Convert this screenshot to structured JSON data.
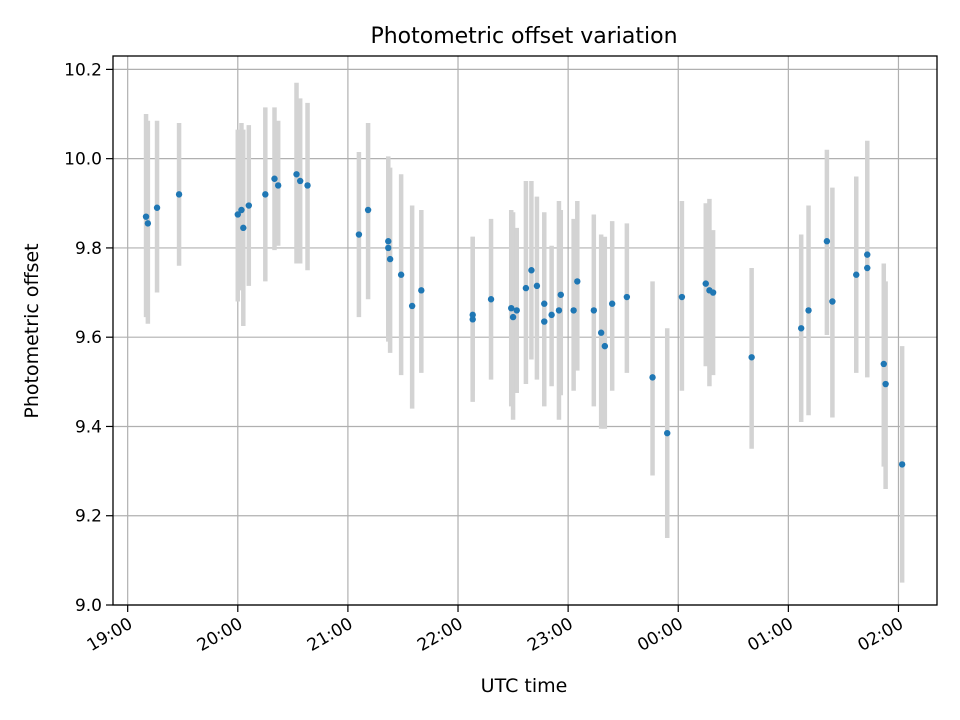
{
  "chart_data": {
    "type": "scatter",
    "title": "Photometric offset variation",
    "xlabel": "UTC time",
    "ylabel": "Photometric offset",
    "xlim": [
      "18:52",
      "02:21"
    ],
    "ylim": [
      9.0,
      10.23
    ],
    "xticks": [
      "19:00",
      "20:00",
      "21:00",
      "22:00",
      "23:00",
      "00:00",
      "01:00",
      "02:00"
    ],
    "yticks": [
      "9.0",
      "9.2",
      "9.4",
      "9.6",
      "9.8",
      "10.0",
      "10.2"
    ],
    "grid": true,
    "colors": {
      "point": "#1f77b4",
      "errorbar": "#d3d3d3",
      "grid": "#b0b0b0"
    },
    "series": [
      {
        "x": [
          "19:10",
          "19:11",
          "19:16",
          "19:28",
          "20:00",
          "20:02",
          "20:03",
          "20:06",
          "20:15",
          "20:20",
          "20:22",
          "20:32",
          "20:34",
          "20:38",
          "21:06",
          "21:11",
          "21:22",
          "21:22",
          "21:23",
          "21:29",
          "21:35",
          "21:40",
          "22:08",
          "22:08",
          "22:18",
          "22:29",
          "22:30",
          "22:32",
          "22:37",
          "22:40",
          "22:43",
          "22:47",
          "22:47",
          "22:51",
          "22:55",
          "22:56",
          "23:03",
          "23:05",
          "23:14",
          "23:18",
          "23:20",
          "23:24",
          "23:32",
          "23:46",
          "23:54",
          "00:02",
          "00:15",
          "00:17",
          "00:19",
          "00:40",
          "01:07",
          "01:11",
          "01:21",
          "01:24",
          "01:37",
          "01:43",
          "01:43",
          "01:52",
          "01:53",
          "02:02"
        ],
        "y": [
          9.87,
          9.855,
          9.89,
          9.92,
          9.875,
          9.885,
          9.845,
          9.895,
          9.92,
          9.955,
          9.94,
          9.965,
          9.95,
          9.94,
          9.83,
          9.885,
          9.815,
          9.8,
          9.775,
          9.74,
          9.67,
          9.705,
          9.64,
          9.65,
          9.685,
          9.665,
          9.645,
          9.66,
          9.71,
          9.75,
          9.715,
          9.675,
          9.635,
          9.65,
          9.66,
          9.695,
          9.66,
          9.725,
          9.66,
          9.61,
          9.58,
          9.675,
          9.69,
          9.51,
          9.385,
          9.69,
          9.72,
          9.705,
          9.7,
          9.555,
          9.62,
          9.66,
          9.815,
          9.68,
          9.74,
          9.785,
          9.755,
          9.54,
          9.495,
          9.315
        ],
        "err_low": [
          9.645,
          9.63,
          9.7,
          9.76,
          9.68,
          9.705,
          9.625,
          9.715,
          9.725,
          9.795,
          9.805,
          9.765,
          9.765,
          9.75,
          9.645,
          9.685,
          9.6,
          9.59,
          9.565,
          9.515,
          9.44,
          9.52,
          9.455,
          9.48,
          9.505,
          9.445,
          9.415,
          9.475,
          9.495,
          9.55,
          9.505,
          9.515,
          9.445,
          9.49,
          9.415,
          9.47,
          9.48,
          9.525,
          9.445,
          9.395,
          9.395,
          9.48,
          9.52,
          9.29,
          9.15,
          9.48,
          9.535,
          9.49,
          9.515,
          9.35,
          9.41,
          9.425,
          9.605,
          9.42,
          9.52,
          9.53,
          9.51,
          9.31,
          9.26,
          9.05
        ],
        "err_high": [
          10.1,
          10.085,
          10.085,
          10.08,
          10.065,
          10.08,
          10.065,
          10.075,
          10.115,
          10.115,
          10.085,
          10.17,
          10.135,
          10.125,
          10.015,
          10.08,
          10.005,
          10.0,
          9.98,
          9.965,
          9.895,
          9.885,
          9.825,
          9.825,
          9.865,
          9.885,
          9.88,
          9.845,
          9.95,
          9.95,
          9.915,
          9.88,
          9.83,
          9.805,
          9.905,
          9.885,
          9.865,
          9.905,
          9.875,
          9.83,
          9.825,
          9.86,
          9.855,
          9.725,
          9.62,
          9.905,
          9.9,
          9.91,
          9.84,
          9.755,
          9.83,
          9.895,
          10.02,
          9.935,
          9.96,
          10.04,
          10.0,
          9.765,
          9.725,
          9.58
        ]
      }
    ]
  }
}
